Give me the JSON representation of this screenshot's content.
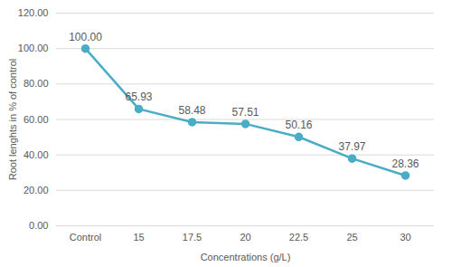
{
  "chart_data": {
    "type": "line",
    "x_label": "Concentrations (g/L)",
    "y_label": "Root lenghts in % of control",
    "categories": [
      "Control",
      "15",
      "17.5",
      "20",
      "22.5",
      "25",
      "30"
    ],
    "values": [
      100,
      65.93,
      58.48,
      57.51,
      50.16,
      37.97,
      28.36
    ],
    "value_labels": [
      "100.00",
      "65.93",
      "58.48",
      "57.51",
      "50.16",
      "37.97",
      "28.36"
    ],
    "color": "#4bacc6",
    "marker": "circle",
    "ylim": [
      0,
      120
    ],
    "yticks": [
      {
        "value": 0,
        "label": "0.00"
      },
      {
        "value": 20,
        "label": "20.00"
      },
      {
        "value": 40,
        "label": "40.00"
      },
      {
        "value": 60,
        "label": "60.00"
      },
      {
        "value": 80,
        "label": "80.00"
      },
      {
        "value": 100,
        "label": "100.00"
      },
      {
        "value": 120,
        "label": "120.00"
      }
    ],
    "grid": true,
    "data_labels": true
  }
}
